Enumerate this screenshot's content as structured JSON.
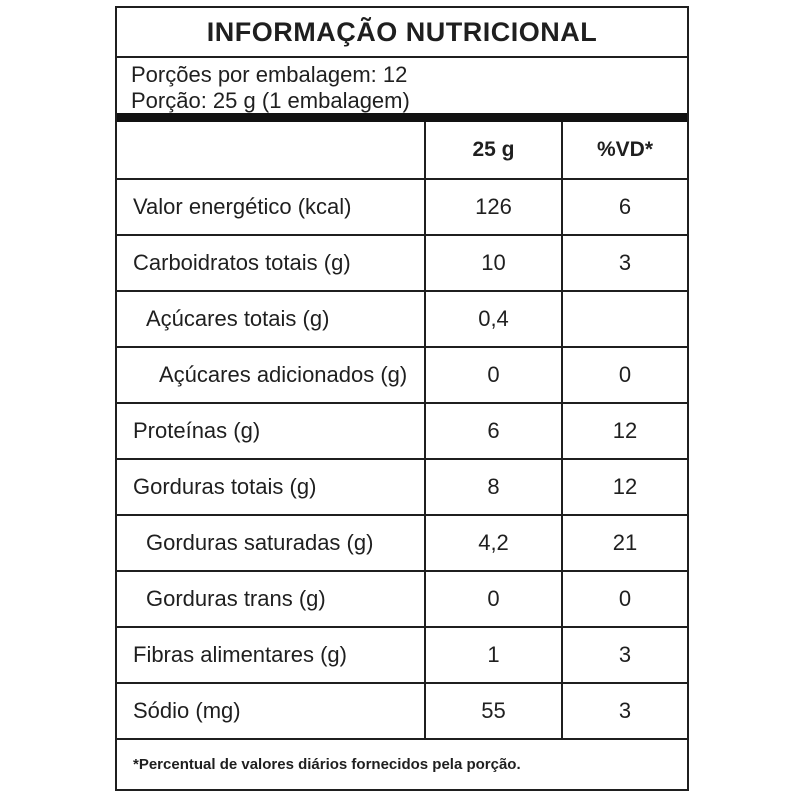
{
  "title": "INFORMAÇÃO NUTRICIONAL",
  "serving_info": {
    "line1": "Porções por embalagem: 12",
    "line2": "Porção: 25 g (1 embalagem)"
  },
  "table": {
    "header": {
      "amount_label": "25 g",
      "vd_label": "%VD*"
    },
    "rows": [
      {
        "label": "Valor energético (kcal)",
        "amount": "126",
        "vd": "6",
        "indent": 0
      },
      {
        "label": "Carboidratos totais (g)",
        "amount": "10",
        "vd": "3",
        "indent": 0
      },
      {
        "label": "Açúcares totais (g)",
        "amount": "0,4",
        "vd": "",
        "indent": 1
      },
      {
        "label": "Açúcares adicionados (g)",
        "amount": "0",
        "vd": "0",
        "indent": 2
      },
      {
        "label": "Proteínas (g)",
        "amount": "6",
        "vd": "12",
        "indent": 0
      },
      {
        "label": "Gorduras totais (g)",
        "amount": "8",
        "vd": "12",
        "indent": 0
      },
      {
        "label": "Gorduras saturadas (g)",
        "amount": "4,2",
        "vd": "21",
        "indent": 1
      },
      {
        "label": "Gorduras trans (g)",
        "amount": "0",
        "vd": "0",
        "indent": 1
      },
      {
        "label": "Fibras alimentares (g)",
        "amount": "1",
        "vd": "3",
        "indent": 0
      },
      {
        "label": "Sódio (mg)",
        "amount": "55",
        "vd": "3",
        "indent": 0
      }
    ]
  },
  "footnote": "*Percentual de valores diários fornecidos pela porção.",
  "colors": {
    "text": "#1f1f1f",
    "border": "#1f1f1f",
    "background": "#ffffff",
    "thick_bar": "#111111"
  }
}
